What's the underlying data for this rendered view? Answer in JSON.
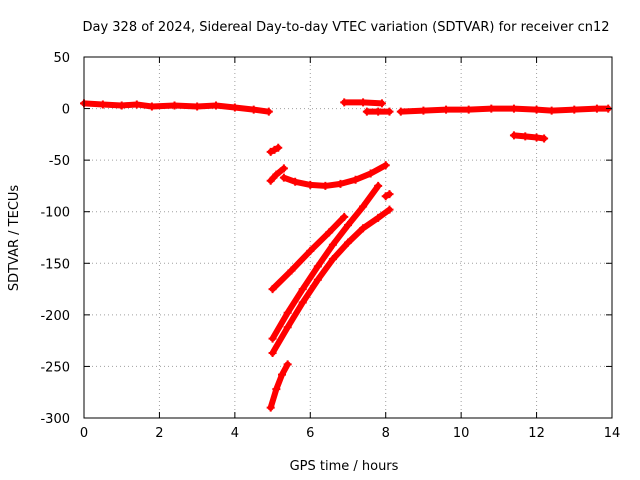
{
  "chart_data": {
    "type": "scatter",
    "title": "Day 328 of 2024, Sidereal Day-to-day VTEC variation (SDTVAR) for receiver cn12",
    "xlabel": "GPS time / hours",
    "ylabel": "SDTVAR / TECUs",
    "xlim": [
      0,
      14
    ],
    "ylim": [
      -300,
      50
    ],
    "xticks": [
      0,
      2,
      4,
      6,
      8,
      10,
      12,
      14
    ],
    "yticks": [
      -300,
      -250,
      -200,
      -150,
      -100,
      -50,
      0,
      50
    ],
    "grid": true,
    "marker": "plus",
    "series_color": "#ff0000",
    "series": [
      {
        "name": "seg-early-baseline",
        "x": [
          0.0,
          0.5,
          1.0,
          1.4,
          1.8,
          2.4,
          3.0,
          3.5,
          4.0,
          4.5,
          4.9
        ],
        "y": [
          5,
          4,
          3,
          4,
          2,
          3,
          2,
          3,
          1,
          -1,
          -3
        ]
      },
      {
        "name": "seg-short-5h",
        "x": [
          4.95,
          5.05,
          5.15
        ],
        "y": [
          -42,
          -40,
          -38
        ]
      },
      {
        "name": "seg-rising-5h",
        "x": [
          4.95,
          5.1,
          5.3
        ],
        "y": [
          -70,
          -64,
          -58
        ]
      },
      {
        "name": "seg-arc",
        "x": [
          5.3,
          5.6,
          6.0,
          6.4,
          6.8,
          7.2,
          7.6,
          8.0
        ],
        "y": [
          -67,
          -71,
          -74,
          -75,
          -73,
          -69,
          -63,
          -55
        ]
      },
      {
        "name": "seg-linear-upper",
        "x": [
          5.0,
          5.5,
          6.0,
          6.5,
          6.9
        ],
        "y": [
          -175,
          -157,
          -138,
          -120,
          -105
        ]
      },
      {
        "name": "seg-steep-a",
        "x": [
          5.0,
          5.4,
          5.8,
          6.2,
          6.6,
          7.0,
          7.4,
          7.8
        ],
        "y": [
          -223,
          -198,
          -175,
          -153,
          -132,
          -113,
          -95,
          -75
        ]
      },
      {
        "name": "seg-steep-b",
        "x": [
          5.0,
          5.4,
          5.8,
          6.2,
          6.6,
          7.0,
          7.4,
          7.8,
          8.1
        ],
        "y": [
          -237,
          -212,
          -188,
          -166,
          -146,
          -130,
          -116,
          -106,
          -98
        ]
      },
      {
        "name": "seg-bottom",
        "x": [
          4.95,
          5.1,
          5.25,
          5.4
        ],
        "y": [
          -290,
          -272,
          -258,
          -248
        ]
      },
      {
        "name": "seg-dot-8h",
        "x": [
          8.0,
          8.1
        ],
        "y": [
          -85,
          -83
        ]
      },
      {
        "name": "seg-plateau-7h",
        "x": [
          6.9,
          7.4,
          7.9
        ],
        "y": [
          6,
          6,
          5
        ]
      },
      {
        "name": "seg-plateau-8h",
        "x": [
          7.5,
          7.8,
          8.1
        ],
        "y": [
          -3,
          -3,
          -3
        ]
      },
      {
        "name": "seg-late-baseline",
        "x": [
          8.4,
          9.0,
          9.6,
          10.2,
          10.8,
          11.4,
          12.0,
          12.4,
          13.0,
          13.6,
          13.9
        ],
        "y": [
          -3,
          -2,
          -1,
          -1,
          0,
          0,
          -1,
          -2,
          -1,
          0,
          0
        ]
      },
      {
        "name": "seg-dip-11h",
        "x": [
          11.4,
          11.7,
          12.0,
          12.2
        ],
        "y": [
          -26,
          -27,
          -28,
          -29
        ]
      }
    ]
  }
}
